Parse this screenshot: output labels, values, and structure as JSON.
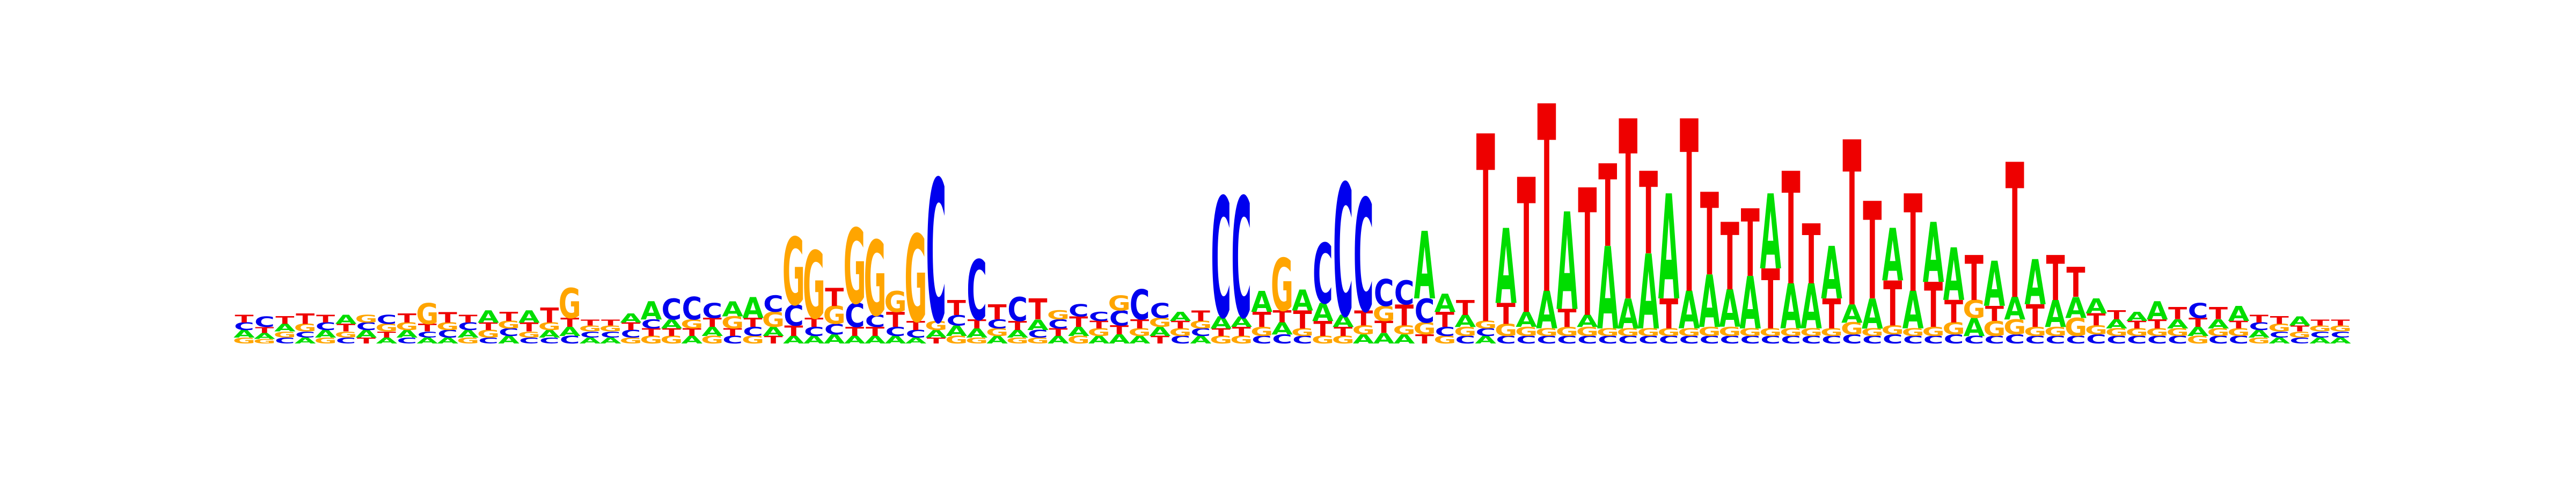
{
  "chart_data": {
    "type": "sequence-logo",
    "title": "",
    "xlabel": "",
    "ylabel": "",
    "alphabet": [
      "A",
      "C",
      "G",
      "T"
    ],
    "colors": {
      "A": "#00dd00",
      "C": "#0000ee",
      "G": "#ffa500",
      "T": "#ee0000"
    },
    "axes_visible": false,
    "columns": [
      {
        "A": 0.05,
        "C": 0.05,
        "G": 0.04,
        "T": 0.05
      },
      {
        "A": 0.04,
        "C": 0.07,
        "G": 0.03,
        "T": 0.04
      },
      {
        "A": 0.05,
        "C": 0.04,
        "G": 0.04,
        "T": 0.05
      },
      {
        "A": 0.04,
        "C": 0.04,
        "G": 0.05,
        "T": 0.07
      },
      {
        "A": 0.05,
        "C": 0.05,
        "G": 0.04,
        "T": 0.05
      },
      {
        "A": 0.06,
        "C": 0.04,
        "G": 0.04,
        "T": 0.05
      },
      {
        "A": 0.05,
        "C": 0.05,
        "G": 0.05,
        "T": 0.04
      },
      {
        "A": 0.04,
        "C": 0.06,
        "G": 0.05,
        "T": 0.04
      },
      {
        "A": 0.05,
        "C": 0.04,
        "G": 0.05,
        "T": 0.06
      },
      {
        "A": 0.04,
        "C": 0.04,
        "G": 0.14,
        "T": 0.05
      },
      {
        "A": 0.04,
        "C": 0.05,
        "G": 0.05,
        "T": 0.07
      },
      {
        "A": 0.05,
        "C": 0.05,
        "G": 0.04,
        "T": 0.05
      },
      {
        "A": 0.08,
        "C": 0.04,
        "G": 0.05,
        "T": 0.05
      },
      {
        "A": 0.05,
        "C": 0.05,
        "G": 0.05,
        "T": 0.06
      },
      {
        "A": 0.08,
        "C": 0.04,
        "G": 0.04,
        "T": 0.06
      },
      {
        "A": 0.05,
        "C": 0.04,
        "G": 0.05,
        "T": 0.1
      },
      {
        "A": 0.06,
        "C": 0.05,
        "G": 0.2,
        "T": 0.06
      },
      {
        "A": 0.04,
        "C": 0.04,
        "G": 0.04,
        "T": 0.04
      },
      {
        "A": 0.04,
        "C": 0.04,
        "G": 0.04,
        "T": 0.04
      },
      {
        "A": 0.06,
        "C": 0.05,
        "G": 0.04,
        "T": 0.05
      },
      {
        "A": 0.12,
        "C": 0.06,
        "G": 0.05,
        "T": 0.05
      },
      {
        "A": 0.06,
        "C": 0.14,
        "G": 0.05,
        "T": 0.05
      },
      {
        "A": 0.05,
        "C": 0.15,
        "G": 0.06,
        "T": 0.05
      },
      {
        "A": 0.06,
        "C": 0.1,
        "G": 0.05,
        "T": 0.06
      },
      {
        "A": 0.1,
        "C": 0.05,
        "G": 0.08,
        "T": 0.05
      },
      {
        "A": 0.14,
        "C": 0.06,
        "G": 0.05,
        "T": 0.06
      },
      {
        "A": 0.06,
        "C": 0.11,
        "G": 0.1,
        "T": 0.05
      },
      {
        "A": 0.05,
        "C": 0.14,
        "G": 0.45,
        "T": 0.07
      },
      {
        "A": 0.05,
        "C": 0.06,
        "G": 0.45,
        "T": 0.06
      },
      {
        "A": 0.06,
        "C": 0.07,
        "G": 0.12,
        "T": 0.12
      },
      {
        "A": 0.05,
        "C": 0.16,
        "G": 0.5,
        "T": 0.06
      },
      {
        "A": 0.05,
        "C": 0.08,
        "G": 0.5,
        "T": 0.06
      },
      {
        "A": 0.05,
        "C": 0.06,
        "G": 0.14,
        "T": 0.1
      },
      {
        "A": 0.04,
        "C": 0.05,
        "G": 0.58,
        "T": 0.06
      },
      {
        "A": 0.05,
        "C": 0.95,
        "G": 0.06,
        "T": 0.04
      },
      {
        "A": 0.07,
        "C": 0.07,
        "G": 0.05,
        "T": 0.1
      },
      {
        "A": 0.06,
        "C": 0.4,
        "G": 0.04,
        "T": 0.06
      },
      {
        "A": 0.05,
        "C": 0.06,
        "G": 0.05,
        "T": 0.1
      },
      {
        "A": 0.05,
        "C": 0.16,
        "G": 0.04,
        "T": 0.06
      },
      {
        "A": 0.07,
        "C": 0.05,
        "G": 0.04,
        "T": 0.14
      },
      {
        "A": 0.05,
        "C": 0.06,
        "G": 0.06,
        "T": 0.05
      },
      {
        "A": 0.06,
        "C": 0.08,
        "G": 0.05,
        "T": 0.07
      },
      {
        "A": 0.05,
        "C": 0.06,
        "G": 0.05,
        "T": 0.05
      },
      {
        "A": 0.06,
        "C": 0.1,
        "G": 0.1,
        "T": 0.06
      },
      {
        "A": 0.05,
        "C": 0.2,
        "G": 0.05,
        "T": 0.06
      },
      {
        "A": 0.06,
        "C": 0.1,
        "G": 0.06,
        "T": 0.05
      },
      {
        "A": 0.06,
        "C": 0.05,
        "G": 0.05,
        "T": 0.05
      },
      {
        "A": 0.05,
        "C": 0.05,
        "G": 0.05,
        "T": 0.07
      },
      {
        "A": 0.08,
        "C": 0.8,
        "G": 0.05,
        "T": 0.05
      },
      {
        "A": 0.07,
        "C": 0.8,
        "G": 0.05,
        "T": 0.06
      },
      {
        "A": 0.14,
        "C": 0.05,
        "G": 0.06,
        "T": 0.1
      },
      {
        "A": 0.08,
        "C": 0.06,
        "G": 0.35,
        "T": 0.08
      },
      {
        "A": 0.14,
        "C": 0.05,
        "G": 0.05,
        "T": 0.12
      },
      {
        "A": 0.12,
        "C": 0.4,
        "G": 0.05,
        "T": 0.1
      },
      {
        "A": 0.08,
        "C": 0.88,
        "G": 0.05,
        "T": 0.06
      },
      {
        "A": 0.06,
        "C": 0.75,
        "G": 0.06,
        "T": 0.1
      },
      {
        "A": 0.07,
        "C": 0.18,
        "G": 0.1,
        "T": 0.08
      },
      {
        "A": 0.06,
        "C": 0.16,
        "G": 0.06,
        "T": 0.14
      },
      {
        "A": 0.45,
        "C": 0.16,
        "G": 0.08,
        "T": 0.06
      },
      {
        "A": 0.12,
        "C": 0.06,
        "G": 0.05,
        "T": 0.1
      },
      {
        "A": 0.08,
        "C": 0.05,
        "G": 0.06,
        "T": 0.1
      },
      {
        "A": 0.05,
        "C": 0.05,
        "G": 0.05,
        "T": 1.25
      },
      {
        "A": 0.5,
        "C": 0.05,
        "G": 0.08,
        "T": 0.14
      },
      {
        "A": 0.1,
        "C": 0.05,
        "G": 0.06,
        "T": 0.9
      },
      {
        "A": 0.25,
        "C": 0.05,
        "G": 0.05,
        "T": 1.25
      },
      {
        "A": 0.65,
        "C": 0.05,
        "G": 0.06,
        "T": 0.12
      },
      {
        "A": 0.08,
        "C": 0.05,
        "G": 0.06,
        "T": 0.85
      },
      {
        "A": 0.55,
        "C": 0.05,
        "G": 0.05,
        "T": 0.55
      },
      {
        "A": 0.2,
        "C": 0.05,
        "G": 0.05,
        "T": 1.2
      },
      {
        "A": 0.5,
        "C": 0.05,
        "G": 0.05,
        "T": 0.55
      },
      {
        "A": 0.7,
        "C": 0.05,
        "G": 0.05,
        "T": 0.2
      },
      {
        "A": 0.25,
        "C": 0.05,
        "G": 0.05,
        "T": 1.15
      },
      {
        "A": 0.35,
        "C": 0.05,
        "G": 0.06,
        "T": 0.55
      },
      {
        "A": 0.25,
        "C": 0.05,
        "G": 0.06,
        "T": 0.45
      },
      {
        "A": 0.35,
        "C": 0.05,
        "G": 0.05,
        "T": 0.45
      },
      {
        "A": 0.5,
        "C": 0.05,
        "G": 0.05,
        "T": 0.4
      },
      {
        "A": 0.3,
        "C": 0.05,
        "G": 0.05,
        "T": 0.75
      },
      {
        "A": 0.3,
        "C": 0.05,
        "G": 0.05,
        "T": 0.4
      },
      {
        "A": 0.35,
        "C": 0.05,
        "G": 0.05,
        "T": 0.2
      },
      {
        "A": 0.12,
        "C": 0.06,
        "G": 0.08,
        "T": 1.1
      },
      {
        "A": 0.2,
        "C": 0.05,
        "G": 0.05,
        "T": 0.65
      },
      {
        "A": 0.35,
        "C": 0.06,
        "G": 0.06,
        "T": 0.3
      },
      {
        "A": 0.25,
        "C": 0.05,
        "G": 0.05,
        "T": 0.65
      },
      {
        "A": 0.4,
        "C": 0.05,
        "G": 0.06,
        "T": 0.3
      },
      {
        "A": 0.35,
        "C": 0.06,
        "G": 0.08,
        "T": 0.15
      },
      {
        "A": 0.12,
        "C": 0.05,
        "G": 0.12,
        "T": 0.3
      },
      {
        "A": 0.3,
        "C": 0.05,
        "G": 0.1,
        "T": 0.1
      },
      {
        "A": 0.15,
        "C": 0.06,
        "G": 0.1,
        "T": 0.9
      },
      {
        "A": 0.3,
        "C": 0.05,
        "G": 0.06,
        "T": 0.15
      },
      {
        "A": 0.18,
        "C": 0.05,
        "G": 0.06,
        "T": 0.3
      },
      {
        "A": 0.14,
        "C": 0.05,
        "G": 0.12,
        "T": 0.2
      },
      {
        "A": 0.1,
        "C": 0.06,
        "G": 0.06,
        "T": 0.08
      },
      {
        "A": 0.06,
        "C": 0.05,
        "G": 0.05,
        "T": 0.06
      },
      {
        "A": 0.06,
        "C": 0.05,
        "G": 0.05,
        "T": 0.05
      },
      {
        "A": 0.12,
        "C": 0.05,
        "G": 0.05,
        "T": 0.06
      },
      {
        "A": 0.06,
        "C": 0.05,
        "G": 0.05,
        "T": 0.08
      },
      {
        "A": 0.06,
        "C": 0.1,
        "G": 0.05,
        "T": 0.06
      },
      {
        "A": 0.06,
        "C": 0.05,
        "G": 0.05,
        "T": 0.08
      },
      {
        "A": 0.1,
        "C": 0.05,
        "G": 0.05,
        "T": 0.05
      },
      {
        "A": 0.05,
        "C": 0.05,
        "G": 0.04,
        "T": 0.05
      },
      {
        "A": 0.04,
        "C": 0.04,
        "G": 0.05,
        "T": 0.05
      },
      {
        "A": 0.06,
        "C": 0.04,
        "G": 0.04,
        "T": 0.04
      },
      {
        "A": 0.04,
        "C": 0.04,
        "G": 0.04,
        "T": 0.04
      },
      {
        "A": 0.04,
        "C": 0.04,
        "G": 0.04,
        "T": 0.04
      }
    ]
  }
}
